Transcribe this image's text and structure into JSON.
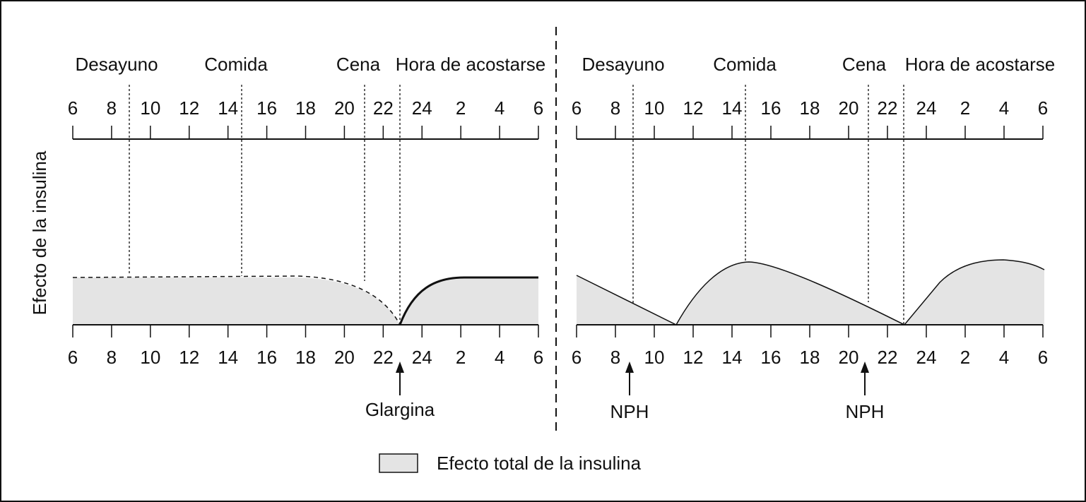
{
  "y_axis_label": "Efecto de la insulina",
  "meals": [
    "Desayuno",
    "Comida",
    "Cena",
    "Hora de acostarse"
  ],
  "hours": [
    "6",
    "8",
    "10",
    "12",
    "14",
    "16",
    "18",
    "20",
    "22",
    "24",
    "2",
    "4",
    "6"
  ],
  "panels": [
    {
      "injections": [
        "Glargina"
      ]
    },
    {
      "injections": [
        "NPH",
        "NPH"
      ]
    }
  ],
  "legend": "Efecto total de la insulina"
}
